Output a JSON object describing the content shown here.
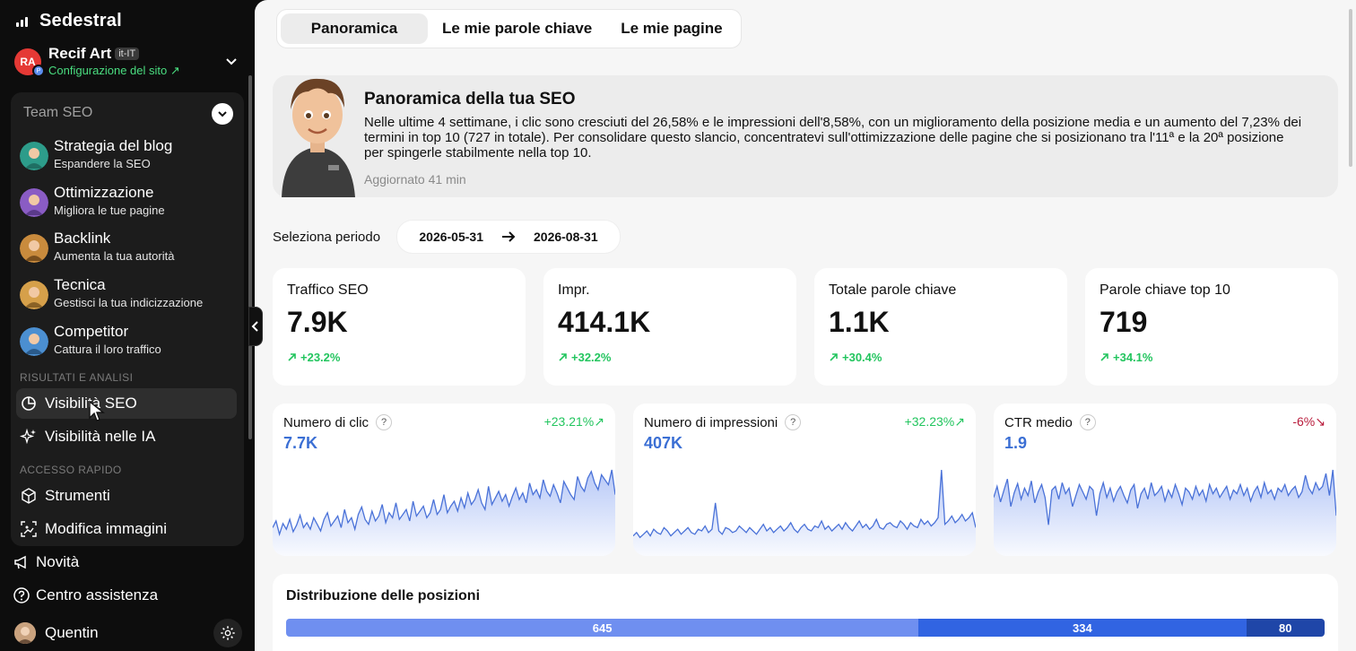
{
  "brand": {
    "name": "Sedestral"
  },
  "site": {
    "avatar_initials": "RA",
    "name": "Recif Art",
    "locale": "it-IT",
    "config_link": "Configurazione del sito ↗"
  },
  "team": {
    "heading": "Team SEO",
    "agents": [
      {
        "title": "Strategia del blog",
        "subtitle": "Espandere la SEO",
        "color": "#2d9c8a"
      },
      {
        "title": "Ottimizzazione",
        "subtitle": "Migliora le tue pagine",
        "color": "#8a5cc4"
      },
      {
        "title": "Backlink",
        "subtitle": "Aumenta la tua autorità",
        "color": "#c98b3d"
      },
      {
        "title": "Tecnica",
        "subtitle": "Gestisci la tua indicizzazione",
        "color": "#d6a04a"
      },
      {
        "title": "Competitor",
        "subtitle": "Cattura il loro traffico",
        "color": "#4b8fd1"
      }
    ]
  },
  "nav": {
    "section_results": "RISULTATI E ANALISI",
    "visibility_seo": "Visibilità SEO",
    "visibility_ai": "Visibilità nelle IA",
    "section_quick": "ACCESSO RAPIDO",
    "tools": "Strumenti",
    "edit_images": "Modifica immagini",
    "news": "Novità",
    "help": "Centro assistenza",
    "user": "Quentin"
  },
  "tabs": [
    "Panoramica",
    "Le mie parole chiave",
    "Le mie pagine"
  ],
  "overview": {
    "title": "Panoramica della tua SEO",
    "text": "Nelle ultime 4 settimane, i clic sono cresciuti del 26,58% e le impressioni dell'8,58%, con un miglioramento della posizione media e un aumento del 7,23% dei termini in top 10 (727 in totale). Per consolidare questo slancio, concentratevi sull'ottimizzazione delle pagine che si posizionano tra l'11ª e la 20ª posizione per spingerle stabilmente nella top 10.",
    "updated": "Aggiornato 41 min"
  },
  "period": {
    "label": "Seleziona periodo",
    "start": "2026-05-31",
    "end": "2026-08-31"
  },
  "kpis": [
    {
      "label": "Traffico SEO",
      "value": "7.9K",
      "change": "+23.2%"
    },
    {
      "label": "Impr.",
      "value": "414.1K",
      "change": "+32.2%"
    },
    {
      "label": "Totale parole chiave",
      "value": "1.1K",
      "change": "+30.4%"
    },
    {
      "label": "Parole chiave top 10",
      "value": "719",
      "change": "+34.1%"
    }
  ],
  "charts": [
    {
      "label": "Numero di clic",
      "value": "7.7K",
      "change": "+23.21%",
      "trend": "up"
    },
    {
      "label": "Numero di impressioni",
      "value": "407K",
      "change": "+32.23%",
      "trend": "up"
    },
    {
      "label": "CTR medio",
      "value": "1.9",
      "change": "-6%",
      "trend": "down"
    }
  ],
  "chart_data": [
    {
      "type": "area",
      "series": [
        {
          "values": [
            30,
            38,
            22,
            35,
            28,
            40,
            25,
            33,
            45,
            30,
            36,
            28,
            42,
            34,
            26,
            40,
            48,
            32,
            38,
            44,
            30,
            52,
            36,
            42,
            28,
            46,
            55,
            40,
            34,
            50,
            38,
            44,
            58,
            36,
            48,
            42,
            60,
            40,
            46,
            52,
            38,
            62,
            44,
            50,
            56,
            42,
            48,
            64,
            46,
            52,
            70,
            48,
            56,
            62,
            50,
            66,
            54,
            72,
            58,
            64,
            76,
            60,
            52,
            80,
            58,
            66,
            74,
            62,
            70,
            56,
            68,
            78,
            64,
            72,
            60,
            84,
            70,
            76,
            66,
            88,
            74,
            68,
            82,
            72,
            60,
            86,
            78,
            70,
            64,
            92,
            80,
            74,
            90,
            98,
            84,
            76,
            94,
            88,
            82,
            100,
            70
          ]
        }
      ]
    },
    {
      "type": "area",
      "series": [
        {
          "values": [
            20,
            24,
            18,
            22,
            26,
            20,
            28,
            24,
            22,
            30,
            26,
            20,
            24,
            28,
            22,
            26,
            30,
            24,
            22,
            28,
            26,
            32,
            24,
            28,
            60,
            26,
            22,
            30,
            28,
            24,
            26,
            32,
            28,
            24,
            30,
            26,
            22,
            28,
            34,
            26,
            30,
            24,
            28,
            32,
            26,
            30,
            36,
            28,
            24,
            30,
            34,
            28,
            26,
            32,
            30,
            38,
            28,
            32,
            26,
            30,
            34,
            28,
            36,
            30,
            26,
            32,
            38,
            30,
            34,
            28,
            32,
            40,
            30,
            28,
            34,
            36,
            32,
            30,
            38,
            34,
            28,
            36,
            32,
            30,
            40,
            34,
            38,
            32,
            36,
            42,
            100,
            34,
            38,
            44,
            36,
            40,
            46,
            38,
            42,
            48,
            30
          ]
        }
      ]
    },
    {
      "type": "area",
      "series": [
        {
          "values": [
            60,
            72,
            55,
            68,
            80,
            50,
            65,
            75,
            58,
            70,
            62,
            78,
            54,
            66,
            74,
            60,
            30,
            68,
            72,
            58,
            76,
            64,
            70,
            50,
            62,
            74,
            66,
            58,
            72,
            68,
            40,
            64,
            76,
            60,
            70,
            56,
            66,
            72,
            62,
            54,
            68,
            74,
            48,
            64,
            70,
            58,
            76,
            62,
            66,
            72,
            56,
            68,
            60,
            74,
            64,
            52,
            70,
            66,
            58,
            72,
            62,
            68,
            56,
            74,
            64,
            70,
            60,
            66,
            72,
            58,
            68,
            64,
            74,
            62,
            70,
            56,
            66,
            72,
            60,
            76,
            64,
            68,
            58,
            70,
            66,
            74,
            62,
            68,
            72,
            60,
            66,
            84,
            70,
            64,
            76,
            68,
            72,
            86,
            62,
            90,
            40
          ]
        }
      ]
    }
  ],
  "distribution": {
    "title": "Distribuzione delle posizioni",
    "segments": [
      {
        "value": "645",
        "color": "#6f8ff0"
      },
      {
        "value": "334",
        "color": "#3164e2"
      },
      {
        "value": "80",
        "color": "#1f46a8"
      }
    ]
  },
  "colors": {
    "accent_green": "#4ade80",
    "chart_blue": "#3b6fd4",
    "negative": "#b91c3c"
  }
}
